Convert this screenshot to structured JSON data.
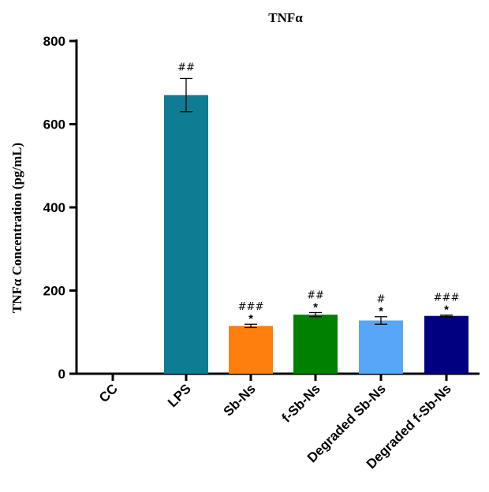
{
  "chart_data": {
    "type": "bar",
    "title": "TNFα",
    "ylabel": "TNFα Concentration (pg/mL)",
    "xlabel": "",
    "ylim": [
      0,
      800
    ],
    "yticks": [
      "0",
      "200",
      "400",
      "600",
      "800"
    ],
    "categories": [
      "CC",
      "LPS",
      "Sb-Ns",
      "f-Sb-Ns",
      "Degraded Sb-Ns",
      "Degraded f-Sb-Ns"
    ],
    "values": [
      0,
      670,
      115,
      142,
      128,
      139
    ],
    "errors": [
      0,
      40,
      4,
      5,
      9,
      2
    ],
    "colors": [
      "#ffffff",
      "#0e7c93",
      "#ff7f0e",
      "#008000",
      "#57a6f7",
      "#000080"
    ],
    "hash_labels": [
      "",
      "##",
      "###",
      "##",
      "#",
      "###"
    ],
    "star_labels": [
      "",
      "",
      "*",
      "*",
      "*",
      "*"
    ],
    "grid": false
  }
}
